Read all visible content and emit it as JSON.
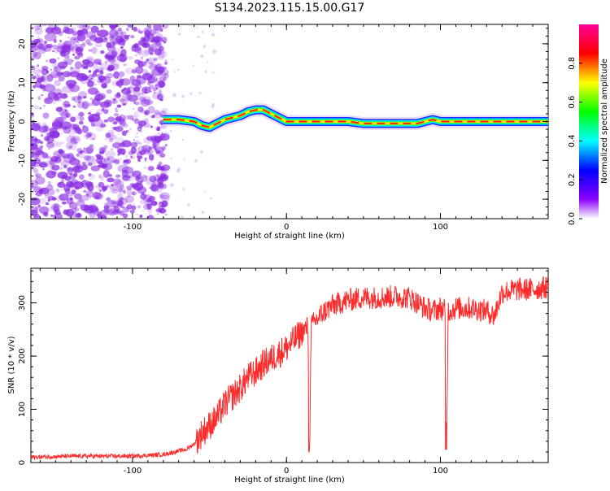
{
  "title": "S134.2023.115.15.00.G17",
  "chart_data": [
    {
      "type": "heatmap",
      "xlabel": "Height of straight line (km)",
      "ylabel": "Frequency (Hz)",
      "xlim": [
        -166,
        170
      ],
      "ylim": [
        -25,
        25
      ],
      "xticks": [
        -100,
        0,
        100
      ],
      "yticks": [
        -20,
        -10,
        0,
        10,
        20
      ],
      "colorbar": {
        "label": "Normalized spectral amplitude",
        "range": [
          0.0,
          1.0
        ],
        "ticks": [
          "0.0",
          "0.2",
          "0.4",
          "0.6",
          "0.8"
        ],
        "colors": [
          "#ffffff",
          "#8a00ff",
          "#0000ff",
          "#00ffff",
          "#00ff00",
          "#ffff00",
          "#ff0000",
          "#ff0099"
        ]
      },
      "noise_region": {
        "x_from": -166,
        "x_to": -78,
        "color": "#8a2be2"
      },
      "signal_trace": {
        "x": [
          -80,
          -70,
          -60,
          -55,
          -50,
          -45,
          -40,
          -35,
          -30,
          -25,
          -20,
          -15,
          -10,
          -5,
          0,
          5,
          10,
          20,
          30,
          40,
          50,
          60,
          70,
          80,
          85,
          90,
          95,
          100,
          110,
          120,
          130,
          140,
          150,
          160,
          170
        ],
        "y": [
          0.5,
          0.5,
          0.0,
          -1.0,
          -1.5,
          -0.5,
          0.5,
          1.0,
          1.5,
          2.5,
          3.0,
          3.0,
          2.0,
          1.0,
          0.0,
          0.0,
          0.0,
          0.0,
          0.0,
          0.0,
          -0.5,
          -0.5,
          -0.5,
          -0.5,
          -0.5,
          0.0,
          0.5,
          0.0,
          0.0,
          0.0,
          0.0,
          0.0,
          0.0,
          0.0,
          0.0
        ]
      }
    },
    {
      "type": "line",
      "xlabel": "Height of straight line (km)",
      "ylabel": "SNR (10 * v/v)",
      "xlim": [
        -166,
        170
      ],
      "ylim": [
        0,
        365
      ],
      "xticks": [
        -100,
        0,
        100
      ],
      "yticks": [
        0,
        100,
        200,
        300
      ],
      "color": "#ff2a2a",
      "series": [
        {
          "x": [
            -166,
            -140,
            -120,
            -100,
            -80,
            -65,
            -60,
            -55,
            -50,
            -45,
            -40,
            -35,
            -30,
            -25,
            -20,
            -15,
            -10,
            -5,
            0,
            5,
            10,
            14,
            15,
            16,
            20,
            25,
            30,
            40,
            50,
            60,
            70,
            80,
            85,
            90,
            95,
            100,
            103,
            104,
            105,
            110,
            120,
            130,
            135,
            140,
            150,
            160,
            170
          ],
          "y": [
            10,
            12,
            12,
            12,
            15,
            25,
            35,
            55,
            70,
            85,
            110,
            125,
            140,
            160,
            170,
            185,
            195,
            205,
            215,
            230,
            245,
            255,
            20,
            255,
            270,
            285,
            295,
            305,
            310,
            310,
            312,
            310,
            300,
            290,
            285,
            290,
            285,
            25,
            285,
            290,
            290,
            285,
            275,
            320,
            325,
            325,
            330
          ]
        }
      ],
      "dips": [
        {
          "x": 14.5,
          "y": 20
        },
        {
          "x": 103.5,
          "y": 25
        }
      ]
    }
  ]
}
